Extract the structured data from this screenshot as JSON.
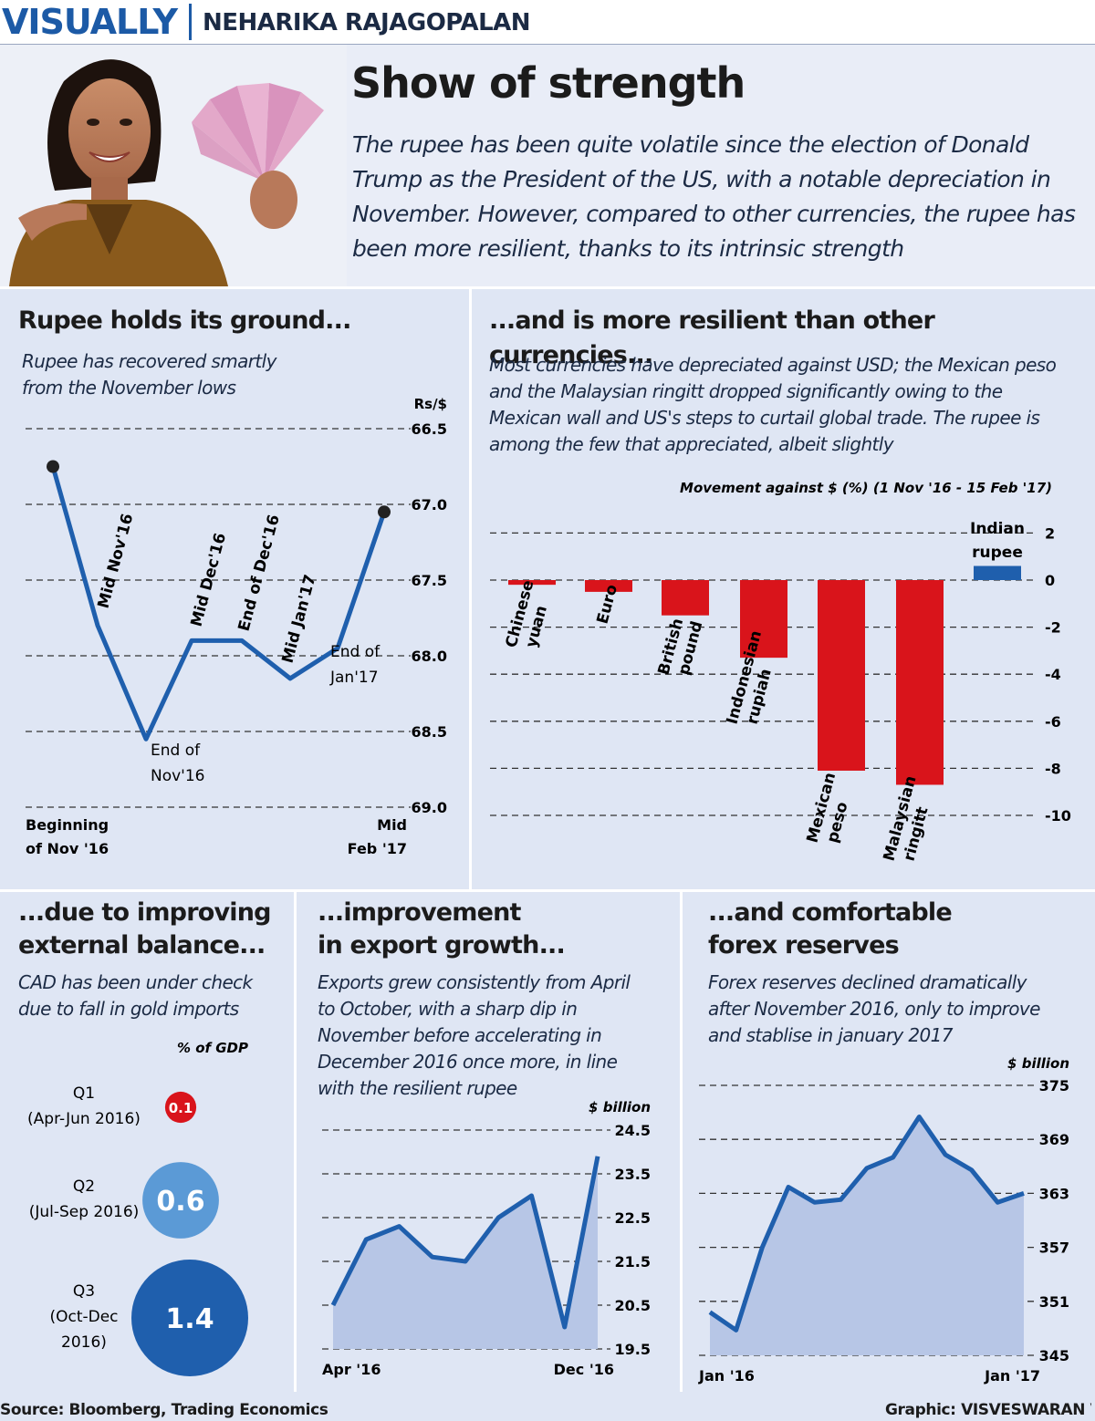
{
  "header": {
    "brand": "VISUALLY",
    "author": "NEHARIKA RAJAGOPALAN"
  },
  "hero": {
    "headline": "Show of strength",
    "intro": "The rupee has been quite volatile since the election of Donald Trump as the President of the US, with a notable depreciation in November. However, compared to other currencies, the rupee has been more resilient, thanks to its intrinsic strength"
  },
  "panels": {
    "rupee": {
      "title": "Rupee holds its ground...",
      "subtitle_line1": "Rupee has recovered smartly",
      "subtitle_line2": "from the November lows"
    },
    "currencies": {
      "title": "...and is more resilient than other currencies...",
      "subtitle_line1": "Most currencies have depreciated against USD; the Mexican peso",
      "subtitle_line2": "and the Malaysian ringitt dropped significantly owing to the",
      "subtitle_line3": "Mexican wall and US's steps to curtail global trade. The rupee is",
      "subtitle_line4": "among the few that appreciated, albeit slightly"
    },
    "cad": {
      "title_line1": "...due to improving",
      "title_line2": "external balance...",
      "subtitle_line1": "CAD has been under check",
      "subtitle_line2": "due to fall in gold imports"
    },
    "exports": {
      "title_line1": "...improvement",
      "title_line2": "in export growth...",
      "subtitle_line1": "Exports grew consistently from April",
      "subtitle_line2": "to October, with a sharp dip in",
      "subtitle_line3": "November before accelerating in",
      "subtitle_line4": "December 2016 once more, in line",
      "subtitle_line5": "with the resilient rupee"
    },
    "forex": {
      "title_line1": "...and comfortable",
      "title_line2": "forex reserves",
      "subtitle_line1": "Forex reserves declined dramatically",
      "subtitle_line2": "after November 2016, only to improve",
      "subtitle_line3": "and stablise in january 2017"
    }
  },
  "footer": {
    "source": "Source: Bloomberg, Trading Economics",
    "graphic": "Graphic: VISVESWARAN V"
  },
  "colors": {
    "blue": "#1f5fad",
    "red": "#d9141b",
    "area": "#b7c6e6",
    "light_blue": "#5b9ad6"
  },
  "chart_data": [
    {
      "id": "rupee",
      "type": "line",
      "unit_label": "Rs/$",
      "y_inverted": true,
      "ylim": [
        66.5,
        69.0
      ],
      "yticks": [
        "66.5",
        "67.0",
        "67.5",
        "68.0",
        "68.5",
        "69.0"
      ],
      "x_start_label_line1": "Beginning",
      "x_start_label_line2": "of Nov '16",
      "x_end_label_line1": "Mid",
      "x_end_label_line2": "Feb '17",
      "points": [
        {
          "label": "Beginning of Nov '16",
          "value": 66.75
        },
        {
          "label": "Mid Nov'16",
          "value": 67.8
        },
        {
          "label": "End of Nov'16",
          "value": 68.55
        },
        {
          "label": "Mid Dec'16",
          "value": 67.9
        },
        {
          "label": "End of Dec'16",
          "value": 67.9
        },
        {
          "label": "Mid Jan'17",
          "value": 68.15
        },
        {
          "label": "End of Jan'17",
          "value": 67.95
        },
        {
          "label": "Mid Feb '17",
          "value": 67.05
        }
      ],
      "annotations": [
        {
          "text": "Mid Nov'16",
          "rotated": true
        },
        {
          "text": "Mid Dec'16",
          "rotated": true
        },
        {
          "text": "End of Dec'16",
          "rotated": true
        },
        {
          "text": "Mid Jan'17",
          "rotated": true
        },
        {
          "text_line1": "End of",
          "text_line2": "Jan'17",
          "rotated": false
        },
        {
          "text_line1": "End of",
          "text_line2": "Nov'16",
          "rotated": false
        }
      ]
    },
    {
      "id": "currencies",
      "type": "bar",
      "title": "Movement against $ (%) (1 Nov '16 - 15 Feb '17)",
      "ylim": [
        -10,
        2
      ],
      "yticks": [
        "2",
        "0",
        "-2",
        "-4",
        "-6",
        "-8",
        "-10"
      ],
      "categories": [
        "Chinese yuan",
        "Euro",
        "British pound",
        "Indonesian rupiah",
        "Mexican peso",
        "Malaysian ringitt",
        "Indian rupee"
      ],
      "values": [
        -0.2,
        -0.5,
        -1.5,
        -3.3,
        -8.1,
        -8.7,
        0.6
      ]
    },
    {
      "id": "cad",
      "type": "bubble",
      "unit_label": "% of GDP",
      "items": [
        {
          "label_line1": "Q1",
          "label_line2": "(Apr-Jun 2016)",
          "value": 0.1,
          "display": "0.1",
          "color": "#d9141b"
        },
        {
          "label_line1": "Q2",
          "label_line2": "(Jul-Sep 2016)",
          "value": 0.6,
          "display": "0.6",
          "color": "#5b9ad6"
        },
        {
          "label_line1": "Q3",
          "label_line2": "(Oct-Dec",
          "label_line3": "2016)",
          "value": 1.4,
          "display": "1.4",
          "color": "#1f5fad"
        }
      ]
    },
    {
      "id": "exports",
      "type": "area",
      "unit_label": "$ billion",
      "ylim": [
        19.5,
        24.5
      ],
      "yticks": [
        "24.5",
        "23.5",
        "22.5",
        "21.5",
        "20.5",
        "19.5"
      ],
      "x_start_label": "Apr '16",
      "x_end_label": "Dec '16",
      "values": [
        20.5,
        22.0,
        22.3,
        21.6,
        21.5,
        22.5,
        23.0,
        20.0,
        23.9
      ]
    },
    {
      "id": "forex",
      "type": "area",
      "unit_label": "$ billion",
      "ylim": [
        345,
        375
      ],
      "yticks": [
        "375",
        "369",
        "363",
        "357",
        "351",
        "345"
      ],
      "x_start_label": "Jan '16",
      "x_end_label": "Jan '17",
      "values": [
        349.8,
        347.8,
        357.0,
        363.7,
        362.0,
        362.3,
        365.8,
        367.0,
        371.5,
        367.3,
        365.6,
        362.0,
        363.0
      ]
    }
  ]
}
